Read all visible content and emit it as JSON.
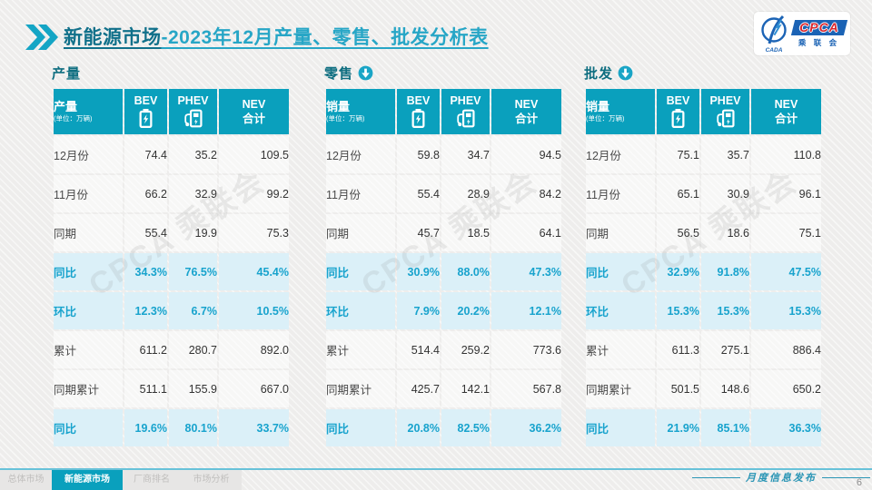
{
  "header": {
    "title_primary": "新能源市场",
    "title_rest": "-2023年12月产量、零售、批发分析表",
    "logo": {
      "cpca": "CPCA",
      "assoc": "乘 联 会",
      "emblem_sub": "CADA"
    }
  },
  "colors": {
    "table_header_teal": "#0aa0bd",
    "highlight_row_bg": "#daeff8",
    "highlight_text": "#18a3cd",
    "title_dark": "#10708a",
    "title_light": "#27a6c6",
    "footer_line": "#68c2d9"
  },
  "watermark": "CPCA 乘联会",
  "chart_data": [
    {
      "type": "table",
      "section_label": "产量",
      "section_icon": null,
      "corner_label": "产量",
      "corner_unit": "(单位：万辆)",
      "columns": [
        {
          "label": "BEV",
          "icon": "battery-icon"
        },
        {
          "label": "PHEV",
          "icon": "charger-icon"
        },
        {
          "label": "NEV",
          "label2": "合计",
          "icon": null
        }
      ],
      "rows": [
        {
          "label": "12月份",
          "values": [
            "74.4",
            "35.2",
            "109.5"
          ],
          "highlight": false
        },
        {
          "label": "11月份",
          "values": [
            "66.2",
            "32.9",
            "99.2"
          ],
          "highlight": false
        },
        {
          "label": "同期",
          "values": [
            "55.4",
            "19.9",
            "75.3"
          ],
          "highlight": false
        },
        {
          "label": "同比",
          "values": [
            "34.3%",
            "76.5%",
            "45.4%"
          ],
          "highlight": true
        },
        {
          "label": "环比",
          "values": [
            "12.3%",
            "6.7%",
            "10.5%"
          ],
          "highlight": true
        },
        {
          "label": "累计",
          "values": [
            "611.2",
            "280.7",
            "892.0"
          ],
          "highlight": false
        },
        {
          "label": "同期累计",
          "values": [
            "511.1",
            "155.9",
            "667.0"
          ],
          "highlight": false
        },
        {
          "label": "同比",
          "values": [
            "19.6%",
            "80.1%",
            "33.7%"
          ],
          "highlight": true
        }
      ]
    },
    {
      "type": "table",
      "section_label": "零售",
      "section_icon": "down-arrow-icon",
      "corner_label": "销量",
      "corner_unit": "(单位：万辆)",
      "columns": [
        {
          "label": "BEV",
          "icon": "battery-icon"
        },
        {
          "label": "PHEV",
          "icon": "charger-icon"
        },
        {
          "label": "NEV",
          "label2": "合计",
          "icon": null
        }
      ],
      "rows": [
        {
          "label": "12月份",
          "values": [
            "59.8",
            "34.7",
            "94.5"
          ],
          "highlight": false
        },
        {
          "label": "11月份",
          "values": [
            "55.4",
            "28.9",
            "84.2"
          ],
          "highlight": false
        },
        {
          "label": "同期",
          "values": [
            "45.7",
            "18.5",
            "64.1"
          ],
          "highlight": false
        },
        {
          "label": "同比",
          "values": [
            "30.9%",
            "88.0%",
            "47.3%"
          ],
          "highlight": true
        },
        {
          "label": "环比",
          "values": [
            "7.9%",
            "20.2%",
            "12.1%"
          ],
          "highlight": true
        },
        {
          "label": "累计",
          "values": [
            "514.4",
            "259.2",
            "773.6"
          ],
          "highlight": false
        },
        {
          "label": "同期累计",
          "values": [
            "425.7",
            "142.1",
            "567.8"
          ],
          "highlight": false
        },
        {
          "label": "同比",
          "values": [
            "20.8%",
            "82.5%",
            "36.2%"
          ],
          "highlight": true
        }
      ]
    },
    {
      "type": "table",
      "section_label": "批发",
      "section_icon": "down-arrow-icon",
      "corner_label": "销量",
      "corner_unit": "(单位：万辆)",
      "columns": [
        {
          "label": "BEV",
          "icon": "battery-icon"
        },
        {
          "label": "PHEV",
          "icon": "charger-icon"
        },
        {
          "label": "NEV",
          "label2": "合计",
          "icon": null
        }
      ],
      "rows": [
        {
          "label": "12月份",
          "values": [
            "75.1",
            "35.7",
            "110.8"
          ],
          "highlight": false
        },
        {
          "label": "11月份",
          "values": [
            "65.1",
            "30.9",
            "96.1"
          ],
          "highlight": false
        },
        {
          "label": "同期",
          "values": [
            "56.5",
            "18.6",
            "75.1"
          ],
          "highlight": false
        },
        {
          "label": "同比",
          "values": [
            "32.9%",
            "91.8%",
            "47.5%"
          ],
          "highlight": true
        },
        {
          "label": "环比",
          "values": [
            "15.3%",
            "15.3%",
            "15.3%"
          ],
          "highlight": true
        },
        {
          "label": "累计",
          "values": [
            "611.3",
            "275.1",
            "886.4"
          ],
          "highlight": false
        },
        {
          "label": "同期累计",
          "values": [
            "501.5",
            "148.6",
            "650.2"
          ],
          "highlight": false
        },
        {
          "label": "同比",
          "values": [
            "21.9%",
            "85.1%",
            "36.3%"
          ],
          "highlight": true
        }
      ]
    }
  ],
  "footer": {
    "tabs": [
      {
        "label": "总体市场",
        "active": false
      },
      {
        "label": "新能源市场",
        "active": true
      },
      {
        "label": "厂商排名",
        "active": false
      },
      {
        "label": "市场分析",
        "active": false
      }
    ],
    "caption": "月度信息发布",
    "page_number": "6"
  }
}
